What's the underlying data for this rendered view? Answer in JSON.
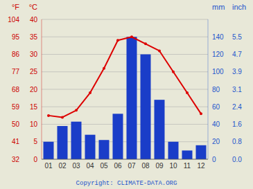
{
  "chart_data": {
    "type": "bar",
    "categories": [
      "01",
      "02",
      "03",
      "04",
      "05",
      "06",
      "07",
      "08",
      "09",
      "10",
      "11",
      "12"
    ],
    "series": [
      {
        "type": "bar",
        "color": "#1a3dc8",
        "axis": "y2",
        "values": [
          20,
          38,
          43,
          28,
          22,
          52,
          140,
          120,
          68,
          20,
          10,
          16
        ]
      },
      {
        "type": "line",
        "color": "#dd0000",
        "marker": "circle",
        "values": [
          12.5,
          12,
          14,
          19,
          26,
          34,
          35,
          33,
          31,
          25,
          19,
          13
        ]
      }
    ],
    "ylim": [
      0,
      40
    ],
    "yticks": [
      0,
      5,
      10,
      15,
      20,
      25,
      30,
      35,
      40
    ],
    "ylabel": "°C",
    "ylabel_alt": "°F",
    "yticks_alt": [
      {
        "value": 0,
        "label": "32"
      },
      {
        "value": 5,
        "label": "41"
      },
      {
        "value": 10,
        "label": "50"
      },
      {
        "value": 15,
        "label": "59"
      },
      {
        "value": 20,
        "label": "68"
      },
      {
        "value": 25,
        "label": "77"
      },
      {
        "value": 30,
        "label": "86"
      },
      {
        "value": 35,
        "label": "95"
      },
      {
        "value": 40,
        "label": "104"
      }
    ],
    "y_color": "#cc0000",
    "y2lim": [
      0,
      160
    ],
    "y2ticks": [
      0,
      20,
      40,
      60,
      80,
      100,
      120,
      140
    ],
    "y2label": "mm",
    "y2label_alt": "inch",
    "y2ticks_alt": [
      {
        "value": 0,
        "label": "0.0"
      },
      {
        "value": 20,
        "label": "0.8"
      },
      {
        "value": 40,
        "label": "1.6"
      },
      {
        "value": 60,
        "label": "2.4"
      },
      {
        "value": 80,
        "label": "3.1"
      },
      {
        "value": 100,
        "label": "3.9"
      },
      {
        "value": 120,
        "label": "4.7"
      },
      {
        "value": 140,
        "label": "5.5"
      }
    ],
    "y2_color": "#2255cc",
    "grid": true,
    "grid_color": "#b0b0b0",
    "background_color": "#e8e8d8",
    "annotation": "Copyright: CLIMATE-DATA.ORG",
    "annotation_color": "#2255cc"
  }
}
